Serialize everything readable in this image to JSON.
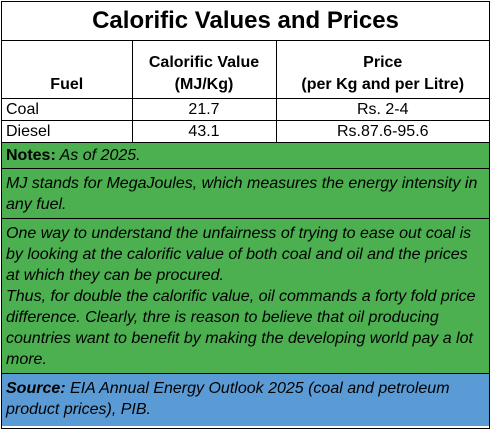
{
  "title": "Calorific Values and Prices",
  "table": {
    "headers": {
      "fuel": "Fuel",
      "calorific_line1": "Calorific Value",
      "calorific_line2": "(MJ/Kg)",
      "price_line1": "Price",
      "price_line2": "(per Kg and per Litre)"
    },
    "rows": [
      {
        "fuel": "Coal",
        "calorific": "21.7",
        "price": "Rs. 2-4"
      },
      {
        "fuel": "Diesel",
        "calorific": "43.1",
        "price": "Rs.87.6-95.6"
      }
    ]
  },
  "notes": {
    "label": "Notes:",
    "date": " As of 2025.",
    "mj": "MJ stands for MegaJoules, which measures the energy intensity in any fuel.",
    "para1": "One way to understand the unfairness of trying to ease out coal is by looking at the calorific value of both coal and oil and the prices at which they can be procured.",
    "para2": "Thus, for double the calorific value, oil commands a forty fold price difference. Clearly, thre is reason to believe that oil producing countries want to benefit by making the developing world pay a lot more."
  },
  "source": {
    "label": "Source:",
    "text": " EIA Annual Energy Outlook 2025 (coal and petroleum product prices), PIB."
  },
  "colors": {
    "notes_bg": "#4caf50",
    "source_bg": "#5b9bd5"
  }
}
